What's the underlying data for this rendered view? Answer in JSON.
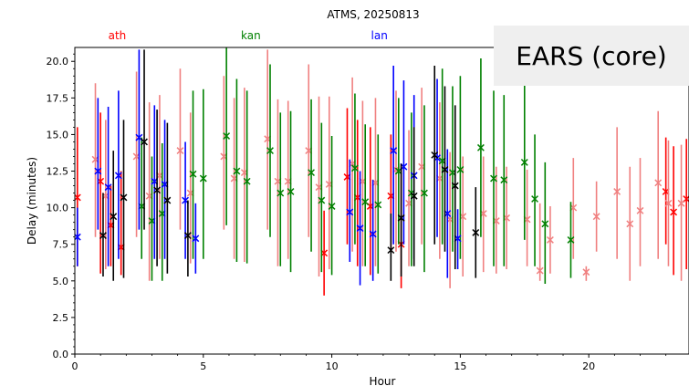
{
  "chart_data": {
    "type": "scatter",
    "title": "ATMS, 20250813",
    "xlabel": "Hour",
    "ylabel": "Delay (minutes)",
    "xlim": [
      0,
      24
    ],
    "ylim": [
      0,
      21
    ],
    "xticks": [
      0,
      5,
      10,
      15,
      20
    ],
    "yticks": [
      0.0,
      2.5,
      5.0,
      7.5,
      10.0,
      12.5,
      15.0,
      17.5,
      20.0
    ],
    "grid": false,
    "top_labels": [
      {
        "text": "ath",
        "x": 1.65,
        "color": "#ff0000"
      },
      {
        "text": "kan",
        "x": 6.85,
        "color": "#008000"
      },
      {
        "text": "lan",
        "x": 11.85,
        "color": "#0000ff"
      }
    ],
    "overlay_label": "EARS (core)",
    "series": [
      {
        "color": "#ff0000",
        "points": [
          {
            "x": 0.1,
            "y": 10.7,
            "lo": 6.0,
            "hi": 15.5
          },
          {
            "x": 1.0,
            "y": 11.8,
            "lo": 5.5,
            "hi": 16.5
          },
          {
            "x": 1.4,
            "y": 8.8,
            "lo": 6.0,
            "hi": 11.5
          },
          {
            "x": 1.8,
            "y": 7.3,
            "lo": 5.4,
            "hi": 12.5
          },
          {
            "x": 9.7,
            "y": 6.9,
            "lo": 4.0,
            "hi": 9.8
          },
          {
            "x": 10.6,
            "y": 12.1,
            "lo": 7.5,
            "hi": 16.8
          },
          {
            "x": 11.0,
            "y": 10.7,
            "lo": 6.0,
            "hi": 16.0
          },
          {
            "x": 11.5,
            "y": 10.1,
            "lo": 5.4,
            "hi": 15.5
          },
          {
            "x": 12.3,
            "y": 10.8,
            "lo": 7.0,
            "hi": 15.0
          },
          {
            "x": 12.7,
            "y": 7.5,
            "lo": 4.5,
            "hi": 13.0
          },
          {
            "x": 23.0,
            "y": 11.1,
            "lo": 7.5,
            "hi": 14.8
          },
          {
            "x": 23.3,
            "y": 9.7,
            "lo": 5.4,
            "hi": 14.2
          },
          {
            "x": 23.8,
            "y": 10.6,
            "lo": 5.8,
            "hi": 14.7
          }
        ]
      },
      {
        "color": "#f08080",
        "points": [
          {
            "x": 0.8,
            "y": 13.3,
            "lo": 8.0,
            "hi": 18.5
          },
          {
            "x": 1.2,
            "y": 10.8,
            "lo": 5.8,
            "hi": 16.0
          },
          {
            "x": 2.4,
            "y": 13.5,
            "lo": 8.0,
            "hi": 19.3
          },
          {
            "x": 2.9,
            "y": 10.8,
            "lo": 5.0,
            "hi": 17.2
          },
          {
            "x": 3.3,
            "y": 12.2,
            "lo": 6.5,
            "hi": 17.7
          },
          {
            "x": 4.1,
            "y": 13.9,
            "lo": 8.5,
            "hi": 19.5
          },
          {
            "x": 4.5,
            "y": 11.0,
            "lo": 6.2,
            "hi": 16.5
          },
          {
            "x": 5.8,
            "y": 13.5,
            "lo": 8.5,
            "hi": 19.0
          },
          {
            "x": 6.2,
            "y": 12.0,
            "lo": 6.5,
            "hi": 17.5
          },
          {
            "x": 6.6,
            "y": 12.4,
            "lo": 6.3,
            "hi": 18.2
          },
          {
            "x": 7.5,
            "y": 14.7,
            "lo": 8.5,
            "hi": 20.8
          },
          {
            "x": 7.9,
            "y": 11.8,
            "lo": 6.0,
            "hi": 17.4
          },
          {
            "x": 8.3,
            "y": 11.8,
            "lo": 6.5,
            "hi": 17.3
          },
          {
            "x": 9.1,
            "y": 13.9,
            "lo": 8.0,
            "hi": 19.8
          },
          {
            "x": 9.5,
            "y": 11.4,
            "lo": 5.3,
            "hi": 17.6
          },
          {
            "x": 9.9,
            "y": 11.6,
            "lo": 5.8,
            "hi": 17.6
          },
          {
            "x": 10.8,
            "y": 13.0,
            "lo": 7.0,
            "hi": 18.9
          },
          {
            "x": 11.2,
            "y": 11.8,
            "lo": 6.0,
            "hi": 17.3
          },
          {
            "x": 11.7,
            "y": 11.7,
            "lo": 6.0,
            "hi": 17.5
          },
          {
            "x": 12.5,
            "y": 12.6,
            "lo": 7.0,
            "hi": 18.0
          },
          {
            "x": 13.0,
            "y": 10.3,
            "lo": 6.0,
            "hi": 15.3
          },
          {
            "x": 13.5,
            "y": 12.8,
            "lo": 7.5,
            "hi": 18.2
          },
          {
            "x": 14.2,
            "y": 12.0,
            "lo": 6.5,
            "hi": 17.2
          },
          {
            "x": 14.6,
            "y": 9.2,
            "lo": 4.5,
            "hi": 13.8
          },
          {
            "x": 15.1,
            "y": 9.4,
            "lo": 5.3,
            "hi": 13.5
          },
          {
            "x": 15.9,
            "y": 9.6,
            "lo": 5.6,
            "hi": 13.5
          },
          {
            "x": 16.4,
            "y": 9.1,
            "lo": 5.5,
            "hi": 12.8
          },
          {
            "x": 16.8,
            "y": 9.3,
            "lo": 5.8,
            "hi": 12.8
          },
          {
            "x": 17.6,
            "y": 9.2,
            "lo": 6.0,
            "hi": 12.6
          },
          {
            "x": 18.1,
            "y": 5.7,
            "lo": 5.0,
            "hi": 10.3
          },
          {
            "x": 18.5,
            "y": 7.8,
            "lo": 5.5,
            "hi": 10.1
          },
          {
            "x": 19.4,
            "y": 10.0,
            "lo": 6.5,
            "hi": 13.4
          },
          {
            "x": 19.9,
            "y": 5.6,
            "lo": 5.0,
            "hi": 6.0
          },
          {
            "x": 20.3,
            "y": 9.4,
            "lo": 7.0,
            "hi": 11.8
          },
          {
            "x": 21.1,
            "y": 11.1,
            "lo": 6.5,
            "hi": 15.5
          },
          {
            "x": 21.6,
            "y": 8.9,
            "lo": 5.0,
            "hi": 12.8
          },
          {
            "x": 22.0,
            "y": 9.8,
            "lo": 6.0,
            "hi": 13.4
          },
          {
            "x": 22.7,
            "y": 11.7,
            "lo": 6.5,
            "hi": 16.6
          },
          {
            "x": 23.1,
            "y": 10.3,
            "lo": 6.0,
            "hi": 14.6
          },
          {
            "x": 23.6,
            "y": 10.3,
            "lo": 5.0,
            "hi": 14.3
          }
        ]
      },
      {
        "color": "#008000",
        "points": [
          {
            "x": 2.6,
            "y": 10.1,
            "lo": 6.5,
            "hi": 14.8
          },
          {
            "x": 3.0,
            "y": 9.1,
            "lo": 5.0,
            "hi": 13.5
          },
          {
            "x": 3.4,
            "y": 9.6,
            "lo": 5.0,
            "hi": 14.4
          },
          {
            "x": 4.6,
            "y": 12.3,
            "lo": 6.5,
            "hi": 18.0
          },
          {
            "x": 5.0,
            "y": 12.0,
            "lo": 6.5,
            "hi": 18.1
          },
          {
            "x": 5.9,
            "y": 14.9,
            "lo": 8.8,
            "hi": 21.0
          },
          {
            "x": 6.3,
            "y": 12.5,
            "lo": 6.3,
            "hi": 18.8
          },
          {
            "x": 6.7,
            "y": 11.8,
            "lo": 6.2,
            "hi": 18.0
          },
          {
            "x": 7.6,
            "y": 13.9,
            "lo": 8.0,
            "hi": 19.8
          },
          {
            "x": 8.0,
            "y": 11.0,
            "lo": 6.0,
            "hi": 16.5
          },
          {
            "x": 8.4,
            "y": 11.1,
            "lo": 5.6,
            "hi": 16.6
          },
          {
            "x": 9.2,
            "y": 12.4,
            "lo": 7.0,
            "hi": 17.4
          },
          {
            "x": 9.6,
            "y": 10.5,
            "lo": 5.6,
            "hi": 15.8
          },
          {
            "x": 10.0,
            "y": 10.1,
            "lo": 5.4,
            "hi": 14.9
          },
          {
            "x": 10.9,
            "y": 12.7,
            "lo": 7.5,
            "hi": 17.8
          },
          {
            "x": 11.3,
            "y": 10.4,
            "lo": 6.0,
            "hi": 15.7
          },
          {
            "x": 11.8,
            "y": 10.2,
            "lo": 5.5,
            "hi": 15.0
          },
          {
            "x": 12.6,
            "y": 12.5,
            "lo": 7.5,
            "hi": 17.5
          },
          {
            "x": 13.1,
            "y": 11.0,
            "lo": 6.0,
            "hi": 16.5
          },
          {
            "x": 13.6,
            "y": 11.0,
            "lo": 5.6,
            "hi": 17.0
          },
          {
            "x": 14.3,
            "y": 13.2,
            "lo": 7.5,
            "hi": 19.5
          },
          {
            "x": 14.7,
            "y": 12.4,
            "lo": 7.0,
            "hi": 18.3
          },
          {
            "x": 15.0,
            "y": 12.6,
            "lo": 6.5,
            "hi": 19.0
          },
          {
            "x": 15.8,
            "y": 14.1,
            "lo": 8.0,
            "hi": 20.2
          },
          {
            "x": 16.3,
            "y": 12.0,
            "lo": 6.0,
            "hi": 18.0
          },
          {
            "x": 16.7,
            "y": 11.9,
            "lo": 6.0,
            "hi": 17.7
          },
          {
            "x": 17.5,
            "y": 13.1,
            "lo": 7.8,
            "hi": 18.5
          },
          {
            "x": 17.9,
            "y": 10.6,
            "lo": 6.0,
            "hi": 15.0
          },
          {
            "x": 18.3,
            "y": 8.9,
            "lo": 4.8,
            "hi": 13.1
          },
          {
            "x": 19.3,
            "y": 7.8,
            "lo": 5.2,
            "hi": 10.4
          }
        ]
      },
      {
        "color": "#0000ff",
        "points": [
          {
            "x": 0.1,
            "y": 8.0,
            "lo": 6.0,
            "hi": 10.0
          },
          {
            "x": 0.9,
            "y": 12.5,
            "lo": 8.5,
            "hi": 17.5
          },
          {
            "x": 1.3,
            "y": 11.4,
            "lo": 6.0,
            "hi": 16.9
          },
          {
            "x": 1.7,
            "y": 12.2,
            "lo": 6.5,
            "hi": 18.0
          },
          {
            "x": 2.5,
            "y": 14.8,
            "lo": 8.5,
            "hi": 20.8
          },
          {
            "x": 3.1,
            "y": 11.8,
            "lo": 6.5,
            "hi": 17.0
          },
          {
            "x": 3.5,
            "y": 11.6,
            "lo": 6.5,
            "hi": 16.0
          },
          {
            "x": 4.3,
            "y": 10.5,
            "lo": 6.5,
            "hi": 14.5
          },
          {
            "x": 4.7,
            "y": 7.9,
            "lo": 5.5,
            "hi": 10.3
          },
          {
            "x": 10.7,
            "y": 9.7,
            "lo": 6.3,
            "hi": 13.3
          },
          {
            "x": 11.1,
            "y": 8.6,
            "lo": 4.7,
            "hi": 12.5
          },
          {
            "x": 11.6,
            "y": 8.2,
            "lo": 5.0,
            "hi": 11.9
          },
          {
            "x": 12.4,
            "y": 13.9,
            "lo": 7.5,
            "hi": 19.7
          },
          {
            "x": 12.8,
            "y": 12.8,
            "lo": 7.5,
            "hi": 18.7
          },
          {
            "x": 13.2,
            "y": 12.2,
            "lo": 6.5,
            "hi": 17.7
          },
          {
            "x": 14.1,
            "y": 13.4,
            "lo": 8.0,
            "hi": 18.8
          },
          {
            "x": 14.5,
            "y": 9.6,
            "lo": 5.2,
            "hi": 14.0
          },
          {
            "x": 14.9,
            "y": 7.9,
            "lo": 5.8,
            "hi": 9.9
          }
        ]
      },
      {
        "color": "#000000",
        "points": [
          {
            "x": 1.1,
            "y": 8.1,
            "lo": 5.3,
            "hi": 11.0
          },
          {
            "x": 1.5,
            "y": 9.4,
            "lo": 5.0,
            "hi": 13.9
          },
          {
            "x": 1.9,
            "y": 10.7,
            "lo": 5.2,
            "hi": 16.0
          },
          {
            "x": 2.7,
            "y": 14.5,
            "lo": 8.5,
            "hi": 20.8
          },
          {
            "x": 3.2,
            "y": 11.2,
            "lo": 6.0,
            "hi": 16.7
          },
          {
            "x": 3.6,
            "y": 10.5,
            "lo": 5.5,
            "hi": 15.8
          },
          {
            "x": 4.4,
            "y": 8.1,
            "lo": 5.3,
            "hi": 10.5
          },
          {
            "x": 12.3,
            "y": 7.1,
            "lo": 5.0,
            "hi": 9.6
          },
          {
            "x": 12.7,
            "y": 9.3,
            "lo": 5.3,
            "hi": 13.0
          },
          {
            "x": 13.2,
            "y": 10.8,
            "lo": 6.0,
            "hi": 15.5
          },
          {
            "x": 14.0,
            "y": 13.6,
            "lo": 7.5,
            "hi": 19.7
          },
          {
            "x": 14.4,
            "y": 12.6,
            "lo": 7.0,
            "hi": 18.3
          },
          {
            "x": 14.8,
            "y": 11.5,
            "lo": 5.8,
            "hi": 17.0
          },
          {
            "x": 15.6,
            "y": 8.3,
            "lo": 5.2,
            "hi": 11.4
          }
        ]
      }
    ]
  }
}
